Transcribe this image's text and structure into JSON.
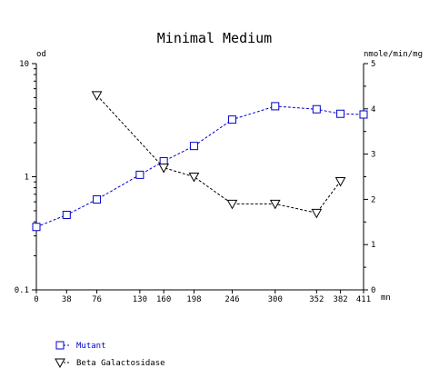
{
  "chart_data": {
    "type": "line",
    "title": "Minimal Medium",
    "x_unit": "mn",
    "y_left_label": "od",
    "y_right_label": "nmole/min/mg",
    "x_ticks": [
      0,
      38,
      76,
      130,
      160,
      198,
      246,
      300,
      352,
      382,
      411
    ],
    "xlim": [
      0,
      411
    ],
    "y_left_scale": "log",
    "y_left_lim": [
      0.1,
      10
    ],
    "y_left_ticks": [
      "0.1",
      "1",
      "10"
    ],
    "y_right_lim": [
      0,
      5
    ],
    "y_right_ticks": [
      "0",
      "1",
      "2",
      "3",
      "4",
      "5"
    ],
    "grid": false,
    "legend_position": "bottom-left",
    "series": [
      {
        "name": "Mutant",
        "axis": "left",
        "color": "#0000cc",
        "marker": "square",
        "x": [
          0,
          38,
          76,
          130,
          160,
          198,
          246,
          300,
          352,
          382,
          411
        ],
        "y": [
          0.36,
          0.46,
          0.63,
          1.04,
          1.37,
          1.87,
          3.2,
          4.2,
          3.95,
          3.6,
          3.55
        ]
      },
      {
        "name": "Beta Galactosidase",
        "axis": "right",
        "color": "#000000",
        "marker": "triangle-down",
        "x": [
          76,
          160,
          198,
          246,
          300,
          352,
          382
        ],
        "y": [
          4.3,
          2.7,
          2.5,
          1.9,
          1.9,
          1.7,
          2.4
        ]
      }
    ]
  }
}
